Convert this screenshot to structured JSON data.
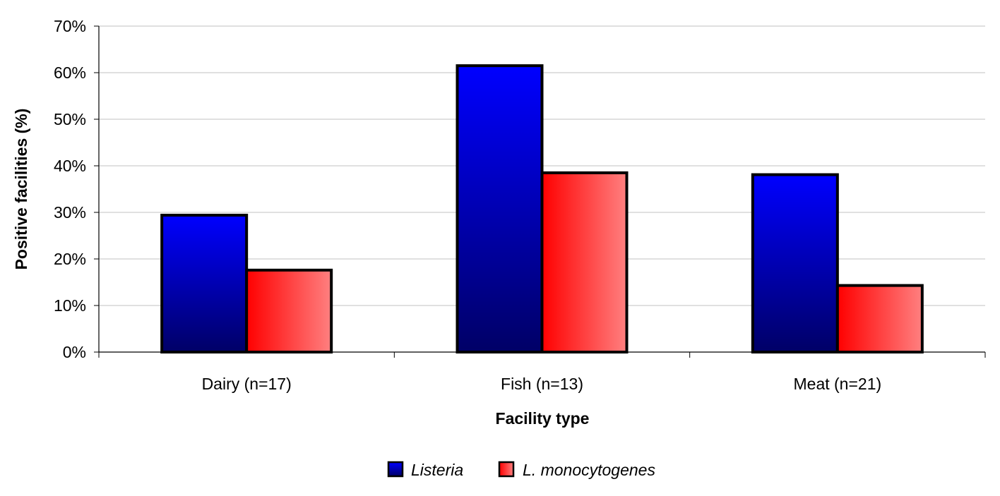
{
  "chart_data": {
    "type": "bar",
    "title": "",
    "xlabel": "Facility type",
    "ylabel": "Positive facilities (%)",
    "ylim": [
      0,
      70
    ],
    "ytick_step": 10,
    "ytick_suffix": "%",
    "grid": true,
    "legend_position": "bottom",
    "categories": [
      "Dairy (n=17)",
      "Fish (n=13)",
      "Meat (n=21)"
    ],
    "series": [
      {
        "name": "Listeria",
        "values": [
          29.4,
          61.5,
          38.1
        ],
        "color": "#0000ff",
        "color_dark": "#000066"
      },
      {
        "name": "L. monocytogenes",
        "values": [
          17.6,
          38.5,
          14.3
        ],
        "color": "#ff0000",
        "color_light": "#ff8080"
      }
    ]
  }
}
